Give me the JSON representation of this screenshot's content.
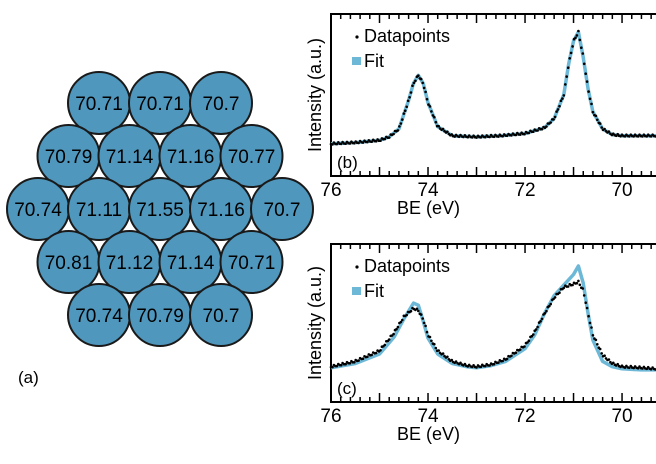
{
  "colors": {
    "circle_fill": "#4f97bd",
    "circle_stroke": "#1a1a1a",
    "datapoints": "#000000",
    "fit": "#6db8d6",
    "background": "#ffffff"
  },
  "panel_a": {
    "label": "(a)",
    "rows": [
      [
        "70.71",
        "70.71",
        "70.7"
      ],
      [
        "70.79",
        "71.14",
        "71.16",
        "70.77"
      ],
      [
        "70.74",
        "71.11",
        "71.55",
        "71.16",
        "70.7"
      ],
      [
        "70.81",
        "71.12",
        "71.14",
        "70.71"
      ],
      [
        "70.74",
        "70.79",
        "70.7"
      ]
    ]
  },
  "chart_data": [
    {
      "type": "line",
      "panel": "(b)",
      "xlabel": "BE (eV)",
      "ylabel": "Intensity (a.u.)",
      "xlim": [
        76,
        69.3
      ],
      "x_reversed": true,
      "xticks": [
        76,
        74,
        72,
        70
      ],
      "legend": {
        "placement": "top-right",
        "entries": [
          "Datapoints",
          "Fit"
        ]
      },
      "grid": false,
      "series": [
        {
          "name": "Datapoints",
          "style": "dots",
          "x": [
            76.0,
            75.5,
            75.0,
            74.8,
            74.6,
            74.4,
            74.3,
            74.2,
            74.1,
            74.0,
            73.8,
            73.5,
            73.0,
            72.5,
            72.0,
            71.6,
            71.4,
            71.2,
            71.1,
            71.0,
            70.9,
            70.8,
            70.7,
            70.6,
            70.4,
            70.2,
            70.0,
            69.6,
            69.3
          ],
          "y": [
            0.02,
            0.03,
            0.05,
            0.08,
            0.15,
            0.4,
            0.55,
            0.62,
            0.55,
            0.38,
            0.17,
            0.09,
            0.08,
            0.09,
            0.11,
            0.16,
            0.24,
            0.45,
            0.72,
            0.92,
            1.0,
            0.78,
            0.5,
            0.3,
            0.15,
            0.1,
            0.09,
            0.09,
            0.09
          ]
        },
        {
          "name": "Fit",
          "style": "line",
          "x": [
            76.0,
            75.5,
            75.0,
            74.8,
            74.6,
            74.4,
            74.3,
            74.2,
            74.1,
            74.0,
            73.8,
            73.5,
            73.0,
            72.5,
            72.0,
            71.6,
            71.4,
            71.2,
            71.1,
            71.0,
            70.9,
            70.8,
            70.7,
            70.6,
            70.4,
            70.2,
            70.0,
            69.6,
            69.3
          ],
          "y": [
            0.02,
            0.03,
            0.05,
            0.08,
            0.15,
            0.4,
            0.55,
            0.62,
            0.55,
            0.38,
            0.17,
            0.09,
            0.08,
            0.09,
            0.11,
            0.16,
            0.24,
            0.45,
            0.72,
            0.92,
            1.0,
            0.78,
            0.5,
            0.3,
            0.15,
            0.1,
            0.09,
            0.09,
            0.09
          ]
        }
      ]
    },
    {
      "type": "line",
      "panel": "(c)",
      "xlabel": "BE (eV)",
      "ylabel": "Intensity (a.u.)",
      "xlim": [
        76,
        69.3
      ],
      "x_reversed": true,
      "xticks": [
        76,
        74,
        72,
        70
      ],
      "legend": {
        "placement": "top-right",
        "entries": [
          "Datapoints",
          "Fit"
        ]
      },
      "grid": false,
      "series": [
        {
          "name": "Datapoints",
          "style": "dots",
          "x": [
            76.0,
            75.5,
            75.0,
            74.7,
            74.5,
            74.3,
            74.2,
            74.1,
            74.0,
            73.8,
            73.5,
            73.2,
            73.0,
            72.7,
            72.4,
            72.0,
            71.8,
            71.6,
            71.4,
            71.2,
            71.0,
            70.9,
            70.8,
            70.7,
            70.6,
            70.4,
            70.2,
            70.0,
            69.6,
            69.3
          ],
          "y": [
            0.05,
            0.1,
            0.2,
            0.37,
            0.52,
            0.6,
            0.58,
            0.5,
            0.35,
            0.2,
            0.1,
            0.06,
            0.05,
            0.07,
            0.12,
            0.25,
            0.38,
            0.55,
            0.7,
            0.8,
            0.83,
            0.85,
            0.77,
            0.55,
            0.35,
            0.16,
            0.08,
            0.05,
            0.04,
            0.03
          ]
        },
        {
          "name": "Fit",
          "style": "line",
          "x": [
            76.0,
            75.5,
            75.0,
            74.7,
            74.5,
            74.3,
            74.2,
            74.1,
            74.0,
            73.8,
            73.5,
            73.2,
            73.0,
            72.7,
            72.4,
            72.0,
            71.8,
            71.6,
            71.4,
            71.2,
            71.0,
            70.9,
            70.8,
            70.7,
            70.6,
            70.4,
            70.2,
            70.0,
            69.6,
            69.3
          ],
          "y": [
            0.04,
            0.08,
            0.17,
            0.33,
            0.5,
            0.65,
            0.63,
            0.48,
            0.32,
            0.17,
            0.08,
            0.05,
            0.04,
            0.06,
            0.1,
            0.22,
            0.35,
            0.55,
            0.72,
            0.82,
            0.92,
            1.0,
            0.84,
            0.55,
            0.3,
            0.1,
            0.05,
            0.03,
            0.02,
            0.02
          ]
        }
      ]
    }
  ]
}
